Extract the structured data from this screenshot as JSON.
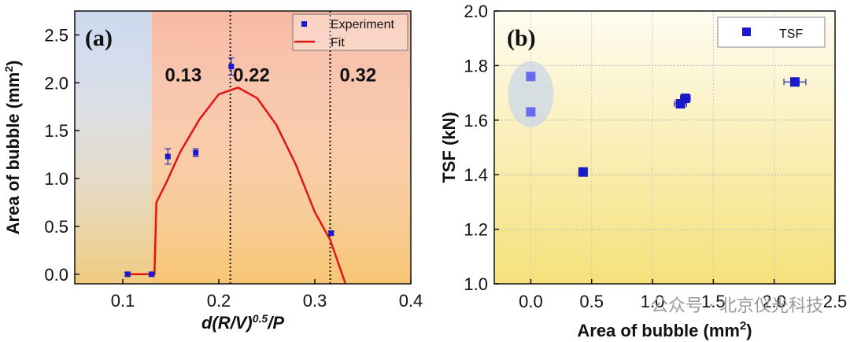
{
  "chart_data": [
    {
      "type": "scatter",
      "panel_label": "(a)",
      "xlabel": "d(R/V)",
      "xlabel_sup": "0.5",
      "xlabel_tail": "/P",
      "ylabel": "Area of bubble (mm",
      "ylabel_sup": "2",
      "ylabel_tail": ")",
      "xlim": [
        0.05,
        0.4
      ],
      "ylim": [
        -0.1,
        2.75
      ],
      "xticks": [
        "0.1",
        "0.2",
        "0.3",
        "0.4"
      ],
      "xtick_values": [
        0.1,
        0.2,
        0.3,
        0.4
      ],
      "yticks": [
        "0.0",
        "0.5",
        "1.0",
        "1.5",
        "2.0",
        "2.5"
      ],
      "ytick_values": [
        0.0,
        0.5,
        1.0,
        1.5,
        2.0,
        2.5
      ],
      "regions": [
        {
          "from": 0.05,
          "to": 0.13,
          "color": "#cdd8ee"
        },
        {
          "from": 0.13,
          "to": 0.4,
          "color": "#f7b9a2"
        }
      ],
      "vlines": [
        0.212,
        0.316
      ],
      "region_labels": [
        {
          "text": "0.13",
          "x": 0.163,
          "y": 2.08
        },
        {
          "text": "0.22",
          "x": 0.234,
          "y": 2.08
        },
        {
          "text": "0.32",
          "x": 0.345,
          "y": 2.08
        }
      ],
      "legend": {
        "position": "top-right",
        "entries": [
          "Experiment",
          "Fit"
        ]
      },
      "series": [
        {
          "name": "Experiment",
          "color": "#1a1acc",
          "x": [
            0.105,
            0.13,
            0.147,
            0.176,
            0.213,
            0.317
          ],
          "y": [
            0.0,
            0.0,
            1.23,
            1.27,
            2.17,
            0.43
          ],
          "yerr": [
            0.02,
            0.02,
            0.08,
            0.04,
            0.09,
            0.02
          ]
        },
        {
          "name": "Fit",
          "color": "#e01515",
          "x": [
            0.105,
            0.133,
            0.135,
            0.145,
            0.16,
            0.18,
            0.2,
            0.22,
            0.24,
            0.26,
            0.28,
            0.3,
            0.316,
            0.332
          ],
          "y": [
            0.0,
            0.0,
            0.75,
            0.95,
            1.28,
            1.62,
            1.88,
            1.95,
            1.84,
            1.56,
            1.15,
            0.65,
            0.36,
            -0.1
          ]
        }
      ]
    },
    {
      "type": "scatter",
      "panel_label": "(b)",
      "xlabel": "Area of bubble (mm",
      "xlabel_sup": "2",
      "xlabel_tail": ")",
      "ylabel": "TSF (kN)",
      "xlim": [
        -0.3,
        2.5
      ],
      "ylim": [
        1.0,
        2.0
      ],
      "xticks": [
        "0.0",
        "0.5",
        "1.0",
        "1.5",
        "2.0",
        "2.5"
      ],
      "xtick_values": [
        0.0,
        0.5,
        1.0,
        1.5,
        2.0,
        2.5
      ],
      "yticks": [
        "1.0",
        "1.2",
        "1.4",
        "1.6",
        "1.8",
        "2.0"
      ],
      "ytick_values": [
        1.0,
        1.2,
        1.4,
        1.6,
        1.8,
        2.0
      ],
      "grid": true,
      "legend": {
        "position": "top-right",
        "entries": [
          "TSF"
        ]
      },
      "highlight": {
        "x": 0.0,
        "y": 1.695
      },
      "series": [
        {
          "name": "TSF",
          "color": "#1a1acc",
          "highlight_color": "#6a6af0",
          "x": [
            0.0,
            0.0,
            0.43,
            1.23,
            1.27,
            2.17
          ],
          "y": [
            1.76,
            1.63,
            1.41,
            1.66,
            1.68,
            1.74
          ],
          "xerr": [
            0.0,
            0.0,
            0.0,
            0.05,
            0.04,
            0.09
          ],
          "highlighted": [
            true,
            true,
            false,
            false,
            false,
            false
          ]
        }
      ]
    }
  ],
  "watermark": "公众号 · 北京仪光科技"
}
